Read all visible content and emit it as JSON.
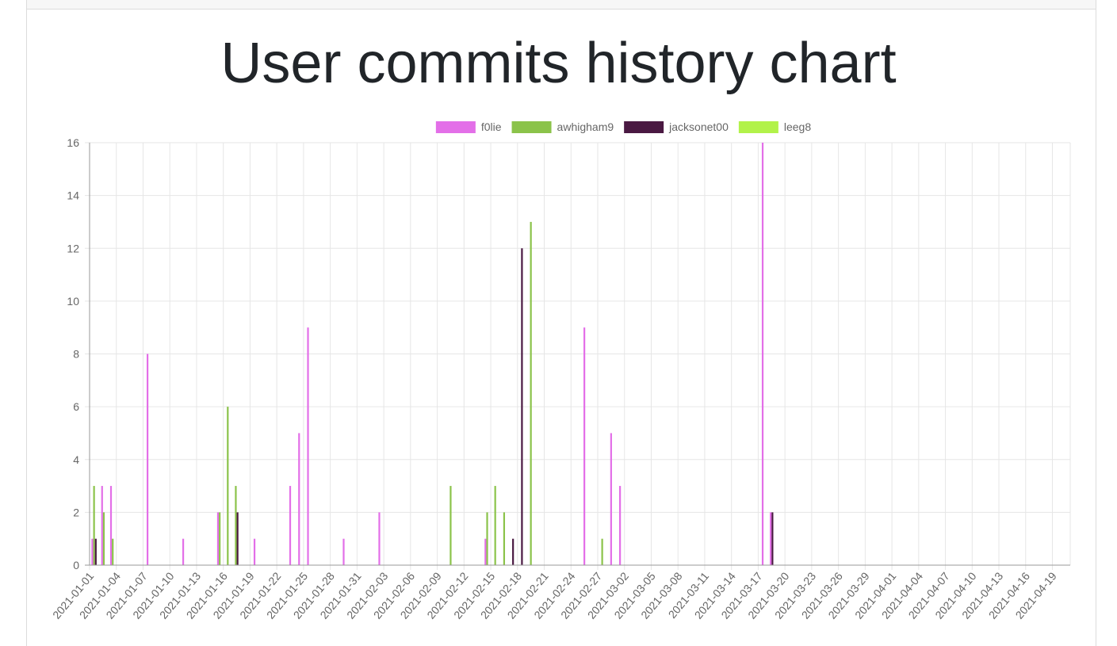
{
  "page": {
    "title": "User commits history chart"
  },
  "chart_data": {
    "type": "bar",
    "title": "User commits history chart",
    "xlabel": "",
    "ylabel": "",
    "ylim": [
      0,
      16
    ],
    "yticks": [
      0,
      2,
      4,
      6,
      8,
      10,
      12,
      14,
      16
    ],
    "grid": true,
    "legend_position": "top",
    "x_start": "2021-01-01",
    "x_end": "2021-04-21",
    "x_tick_labels": [
      "2021-01-01",
      "2021-01-04",
      "2021-01-07",
      "2021-01-10",
      "2021-01-13",
      "2021-01-16",
      "2021-01-19",
      "2021-01-22",
      "2021-01-25",
      "2021-01-28",
      "2021-01-31",
      "2021-02-03",
      "2021-02-06",
      "2021-02-09",
      "2021-02-12",
      "2021-02-15",
      "2021-02-18",
      "2021-02-21",
      "2021-02-24",
      "2021-02-27",
      "2021-03-02",
      "2021-03-05",
      "2021-03-08",
      "2021-03-11",
      "2021-03-14",
      "2021-03-17",
      "2021-03-20",
      "2021-03-23",
      "2021-03-26",
      "2021-03-29",
      "2021-04-01",
      "2021-04-04",
      "2021-04-07",
      "2021-04-10",
      "2021-04-13",
      "2021-04-16",
      "2021-04-19"
    ],
    "series": [
      {
        "name": "f0lie",
        "color": "#e36fe8",
        "points": [
          {
            "date": "2021-01-01",
            "value": 1
          },
          {
            "date": "2021-01-02",
            "value": 3
          },
          {
            "date": "2021-01-03",
            "value": 3
          },
          {
            "date": "2021-01-07",
            "value": 8
          },
          {
            "date": "2021-01-11",
            "value": 1
          },
          {
            "date": "2021-01-15",
            "value": 2
          },
          {
            "date": "2021-01-19",
            "value": 1
          },
          {
            "date": "2021-01-23",
            "value": 3
          },
          {
            "date": "2021-01-24",
            "value": 5
          },
          {
            "date": "2021-01-25",
            "value": 9
          },
          {
            "date": "2021-01-29",
            "value": 1
          },
          {
            "date": "2021-02-02",
            "value": 2
          },
          {
            "date": "2021-02-14",
            "value": 1
          },
          {
            "date": "2021-02-25",
            "value": 9
          },
          {
            "date": "2021-02-28",
            "value": 5
          },
          {
            "date": "2021-03-01",
            "value": 3
          },
          {
            "date": "2021-03-17",
            "value": 16
          },
          {
            "date": "2021-03-18",
            "value": 2
          }
        ]
      },
      {
        "name": "awhigham9",
        "color": "#8bc34a",
        "points": [
          {
            "date": "2021-01-01",
            "value": 3
          },
          {
            "date": "2021-01-02",
            "value": 2
          },
          {
            "date": "2021-01-03",
            "value": 1
          },
          {
            "date": "2021-01-15",
            "value": 2
          },
          {
            "date": "2021-01-16",
            "value": 6
          },
          {
            "date": "2021-01-17",
            "value": 3
          },
          {
            "date": "2021-02-10",
            "value": 3
          },
          {
            "date": "2021-02-14",
            "value": 2
          },
          {
            "date": "2021-02-15",
            "value": 3
          },
          {
            "date": "2021-02-16",
            "value": 2
          },
          {
            "date": "2021-02-19",
            "value": 13
          },
          {
            "date": "2021-02-27",
            "value": 1
          }
        ]
      },
      {
        "name": "jacksonet00",
        "color": "#4a1942",
        "points": [
          {
            "date": "2021-01-01",
            "value": 1
          },
          {
            "date": "2021-01-17",
            "value": 2
          },
          {
            "date": "2021-02-17",
            "value": 1
          },
          {
            "date": "2021-02-18",
            "value": 12
          },
          {
            "date": "2021-03-18",
            "value": 2
          }
        ]
      },
      {
        "name": "leeg8",
        "color": "#b2f24a",
        "points": []
      }
    ]
  }
}
